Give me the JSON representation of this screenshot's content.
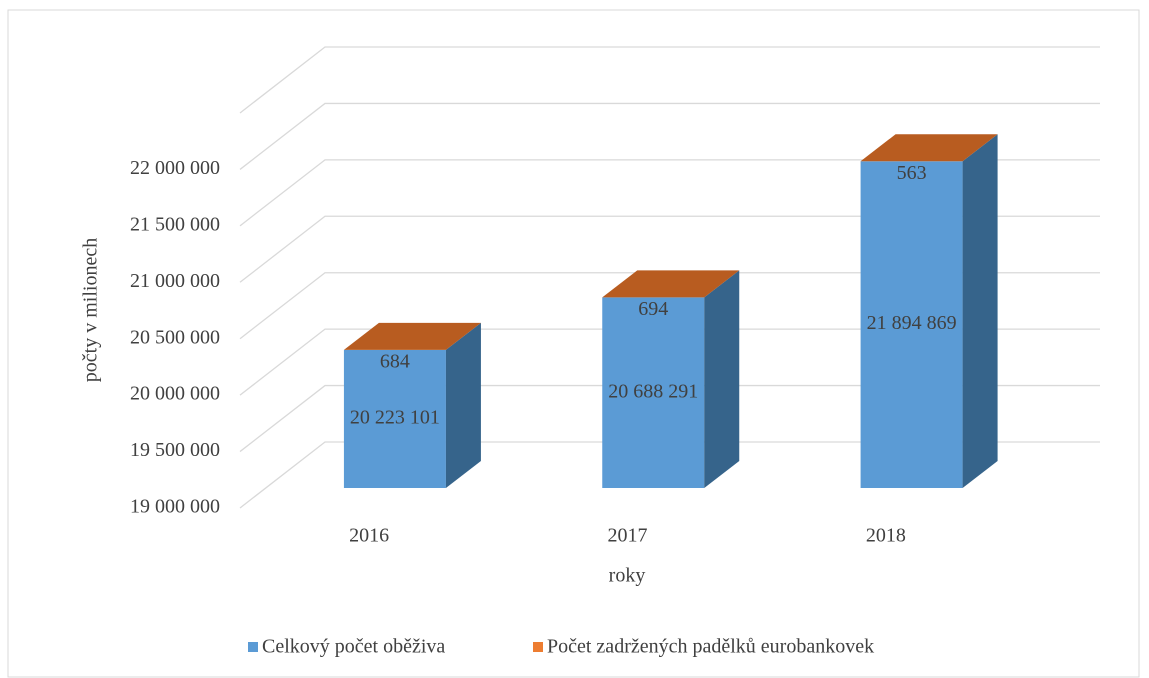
{
  "chart_data": {
    "type": "bar3d_stacked",
    "categories": [
      "2016",
      "2017",
      "2018"
    ],
    "series": [
      {
        "name": "Celkový počet oběživa",
        "color": "#5b9bd5",
        "values": [
          20223101,
          20688291,
          21894869
        ],
        "value_labels": [
          "20 223 101",
          "20 688 291",
          "21 894 869"
        ]
      },
      {
        "name": "Počet zadržených padělků eurobankovek",
        "color": "#ed7d31",
        "values": [
          684,
          694,
          563
        ]
      }
    ],
    "ylabel": "počty v milionech",
    "xlabel": "roky",
    "ylim": [
      19000000,
      22500000
    ],
    "yticks": [
      {
        "value": 19000000,
        "label": "19 000 000"
      },
      {
        "value": 19500000,
        "label": "19 500 000"
      },
      {
        "value": 20000000,
        "label": "20 000 000"
      },
      {
        "value": 20500000,
        "label": "20 500 000"
      },
      {
        "value": 21000000,
        "label": "21 000 000"
      },
      {
        "value": 21500000,
        "label": "21 500 000"
      },
      {
        "value": 22000000,
        "label": "22 000 000"
      }
    ],
    "grid": true,
    "legend": "bottom"
  }
}
